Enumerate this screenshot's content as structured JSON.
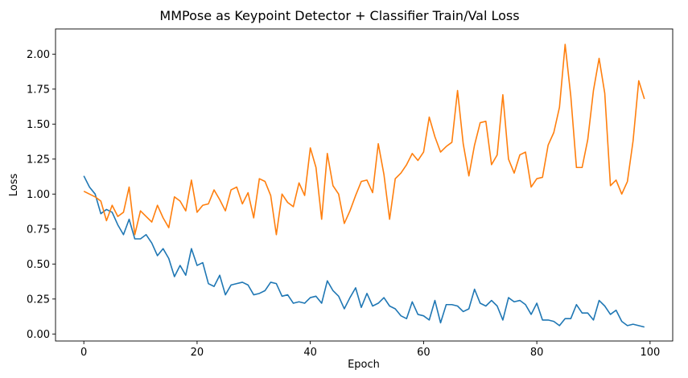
{
  "chart_data": {
    "type": "line",
    "title": "MMPose as Keypoint Detector + Classifier Train/Val Loss",
    "xlabel": "Epoch",
    "ylabel": "Loss",
    "xlim": [
      -5,
      104
    ],
    "ylim": [
      -0.05,
      2.18
    ],
    "xticks": [
      0,
      20,
      40,
      60,
      80,
      100
    ],
    "yticks": [
      0.0,
      0.25,
      0.5,
      0.75,
      1.0,
      1.25,
      1.5,
      1.75,
      2.0
    ],
    "ytick_labels": [
      "0.00",
      "0.25",
      "0.50",
      "0.75",
      "1.00",
      "1.25",
      "1.50",
      "1.75",
      "2.00"
    ],
    "grid": false,
    "legend": "none",
    "series": [
      {
        "color": "#1f77b4",
        "values": [
          1.13,
          1.05,
          1.0,
          0.86,
          0.89,
          0.87,
          0.78,
          0.71,
          0.82,
          0.68,
          0.68,
          0.71,
          0.65,
          0.56,
          0.61,
          0.54,
          0.41,
          0.49,
          0.42,
          0.61,
          0.49,
          0.51,
          0.36,
          0.34,
          0.42,
          0.28,
          0.35,
          0.36,
          0.37,
          0.35,
          0.28,
          0.29,
          0.31,
          0.37,
          0.36,
          0.27,
          0.28,
          0.22,
          0.23,
          0.22,
          0.26,
          0.27,
          0.22,
          0.38,
          0.31,
          0.27,
          0.18,
          0.26,
          0.33,
          0.19,
          0.29,
          0.2,
          0.22,
          0.26,
          0.2,
          0.18,
          0.13,
          0.11,
          0.23,
          0.14,
          0.13,
          0.1,
          0.24,
          0.08,
          0.21,
          0.21,
          0.2,
          0.16,
          0.18,
          0.32,
          0.22,
          0.2,
          0.24,
          0.2,
          0.1,
          0.26,
          0.23,
          0.24,
          0.21,
          0.14,
          0.22,
          0.1,
          0.1,
          0.09,
          0.06,
          0.11,
          0.11,
          0.21,
          0.15,
          0.15,
          0.1,
          0.24,
          0.2,
          0.14,
          0.17,
          0.09,
          0.06,
          0.07,
          0.06,
          0.05
        ]
      },
      {
        "color": "#ff7f0e",
        "values": [
          1.02,
          1.0,
          0.98,
          0.95,
          0.81,
          0.92,
          0.84,
          0.87,
          1.05,
          0.71,
          0.88,
          0.84,
          0.8,
          0.92,
          0.83,
          0.76,
          0.98,
          0.95,
          0.88,
          1.1,
          0.87,
          0.92,
          0.93,
          1.03,
          0.96,
          0.88,
          1.03,
          1.05,
          0.93,
          1.01,
          0.83,
          1.11,
          1.09,
          0.99,
          0.71,
          1.0,
          0.94,
          0.91,
          1.08,
          0.99,
          1.33,
          1.19,
          0.82,
          1.29,
          1.06,
          1.0,
          0.79,
          0.88,
          0.99,
          1.09,
          1.1,
          1.01,
          1.36,
          1.14,
          0.82,
          1.11,
          1.15,
          1.21,
          1.29,
          1.24,
          1.3,
          1.55,
          1.41,
          1.3,
          1.34,
          1.37,
          1.74,
          1.36,
          1.13,
          1.35,
          1.51,
          1.52,
          1.21,
          1.28,
          1.71,
          1.25,
          1.15,
          1.28,
          1.3,
          1.05,
          1.11,
          1.12,
          1.35,
          1.44,
          1.62,
          2.07,
          1.7,
          1.19,
          1.19,
          1.39,
          1.74,
          1.97,
          1.72,
          1.06,
          1.1,
          1.0,
          1.09,
          1.38,
          1.81,
          1.68
        ]
      }
    ]
  }
}
